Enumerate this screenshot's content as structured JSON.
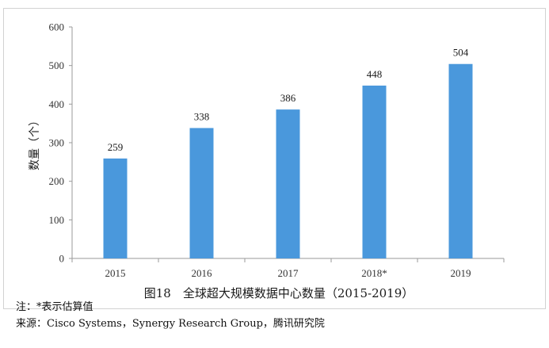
{
  "chart_data": {
    "type": "bar",
    "title": "图18　全球超大规模数据中心数量（2015-2019）",
    "ylabel": "数量（个）",
    "xlabel": "",
    "categories": [
      "2015",
      "2016",
      "2017",
      "2018*",
      "2019"
    ],
    "values": [
      259,
      338,
      386,
      448,
      504
    ],
    "data_labels": [
      "259",
      "338",
      "386",
      "448",
      "504"
    ],
    "ylim": [
      0,
      600
    ],
    "yticks": [
      0,
      100,
      200,
      300,
      400,
      500,
      600
    ],
    "grid": false,
    "legend": "none",
    "bar_color": "#4a98dc",
    "axis_color": "#9a9a9a"
  },
  "notes": {
    "note": "注：*表示估算值",
    "source": "来源：Cisco Systems，Synergy Research Group，腾讯研究院"
  }
}
